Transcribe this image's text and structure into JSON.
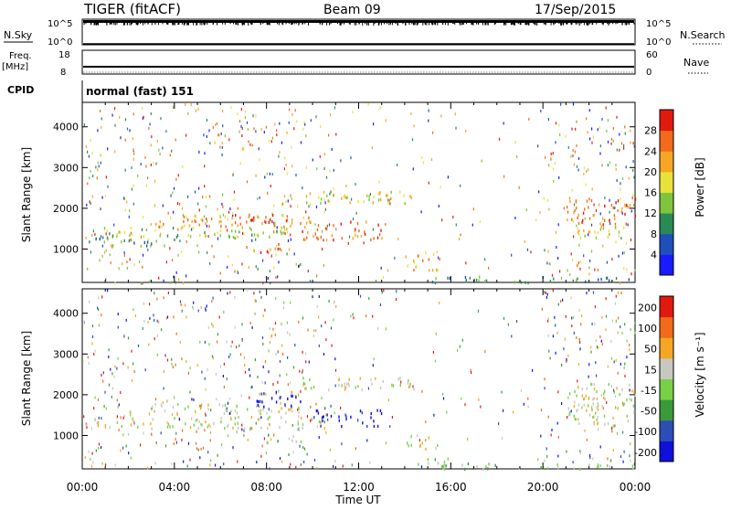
{
  "header": {
    "radar": "TIGER (fitACF)",
    "beam": "Beam 09",
    "date": "17/Sep/2015"
  },
  "nsky_panel": {
    "left_label": "N.Sky",
    "right_label": "N.Search",
    "left_ticks": [
      "10^5",
      "10^0"
    ],
    "right_ticks": [
      "10^5",
      "10^0"
    ]
  },
  "freq_panel": {
    "left_label_1": "Freq.",
    "left_label_2": "[MHz]",
    "right_label": "Nave",
    "left_ticks": [
      "18",
      "8"
    ],
    "right_ticks": [
      "60",
      "0"
    ]
  },
  "cpid": {
    "label": "CPID",
    "mode": "normal (fast) 151"
  },
  "colors": {
    "power_scale": [
      "#1a1aff",
      "#1f4fbd",
      "#2a8a55",
      "#7ec43c",
      "#e8e23a",
      "#f5a623",
      "#f26a1b",
      "#e11a10"
    ],
    "velocity_scale": [
      "#1010dd",
      "#2b4fb5",
      "#3a9a3a",
      "#78d145",
      "#c8c8c0",
      "#f5a623",
      "#f26a1b",
      "#e11a10"
    ],
    "scatter_gray": "#c8c8c0"
  },
  "chart_data": [
    {
      "type": "heatmap",
      "name": "power",
      "xlabel": "",
      "ylabel": "Slant Range [km]",
      "yticks": [
        "4000",
        "3000",
        "2000",
        "1000"
      ],
      "ylim": [
        180,
        4600
      ],
      "xlim": [
        0,
        24
      ],
      "colorbar": {
        "label": "Power [dB]",
        "ticks": [
          "28",
          "24",
          "20",
          "16",
          "12",
          "8",
          "4"
        ]
      },
      "regions": [
        {
          "t0": 0.1,
          "t1": 9.0,
          "r0": 1300,
          "r1": 1550,
          "level": 3
        },
        {
          "t0": 0.1,
          "t1": 4.0,
          "r0": 1100,
          "r1": 1300,
          "level": 2
        },
        {
          "t0": 3.0,
          "t1": 10.0,
          "r0": 1550,
          "r1": 1850,
          "level": 5
        },
        {
          "t0": 6.5,
          "t1": 9.0,
          "r0": 1650,
          "r1": 1900,
          "level": 7
        },
        {
          "t0": 7.0,
          "t1": 9.0,
          "r0": 900,
          "r1": 1100,
          "level": 6
        },
        {
          "t0": 9.5,
          "t1": 13.0,
          "r0": 1250,
          "r1": 1700,
          "level": 6
        },
        {
          "t0": 9.0,
          "t1": 14.5,
          "r0": 2150,
          "r1": 2450,
          "level": 4
        },
        {
          "t0": 14.0,
          "t1": 15.5,
          "r0": 500,
          "r1": 1000,
          "level": 5
        },
        {
          "t0": 21.0,
          "t1": 24.0,
          "r0": 1600,
          "r1": 2300,
          "level": 6
        },
        {
          "t0": 21.5,
          "t1": 24.0,
          "r0": 1300,
          "r1": 1600,
          "level": 4
        },
        {
          "t0": 15.0,
          "t1": 24.0,
          "r0": 200,
          "r1": 350,
          "level": 2
        }
      ]
    },
    {
      "type": "heatmap",
      "name": "velocity",
      "xlabel": "Time UT",
      "ylabel": "Slant Range [km]",
      "xticks": [
        "00:00",
        "04:00",
        "08:00",
        "12:00",
        "16:00",
        "20:00",
        "00:00"
      ],
      "yticks": [
        "4000",
        "3000",
        "2000",
        "1000"
      ],
      "ylim": [
        180,
        4600
      ],
      "xlim": [
        0,
        24
      ],
      "colorbar": {
        "label": "Velocity [m s⁻¹]",
        "ticks": [
          "200",
          "100",
          "50",
          "15",
          "-15",
          "-50",
          "-100",
          "-200"
        ]
      },
      "regions": [
        {
          "t0": 0.1,
          "t1": 10.5,
          "r0": 1200,
          "r1": 1500,
          "level": 4
        },
        {
          "t0": 3.0,
          "t1": 9.5,
          "r0": 1550,
          "r1": 1800,
          "level": 4
        },
        {
          "t0": 7.5,
          "t1": 9.5,
          "r0": 1700,
          "r1": 2100,
          "level": 0
        },
        {
          "t0": 10.0,
          "t1": 13.0,
          "r0": 1250,
          "r1": 1650,
          "level": 0
        },
        {
          "t0": 8.0,
          "t1": 9.5,
          "r0": 850,
          "r1": 1050,
          "level": 3
        },
        {
          "t0": 9.5,
          "t1": 14.5,
          "r0": 2150,
          "r1": 2450,
          "level": 4
        },
        {
          "t0": 14.0,
          "t1": 15.5,
          "r0": 700,
          "r1": 1050,
          "level": 4
        },
        {
          "t0": 14.5,
          "t1": 16.0,
          "r0": 300,
          "r1": 500,
          "level": 3
        },
        {
          "t0": 21.0,
          "t1": 24.0,
          "r0": 1300,
          "r1": 2300,
          "level": 4
        },
        {
          "t0": 15.5,
          "t1": 24.0,
          "r0": 200,
          "r1": 350,
          "level": 3
        }
      ]
    }
  ]
}
